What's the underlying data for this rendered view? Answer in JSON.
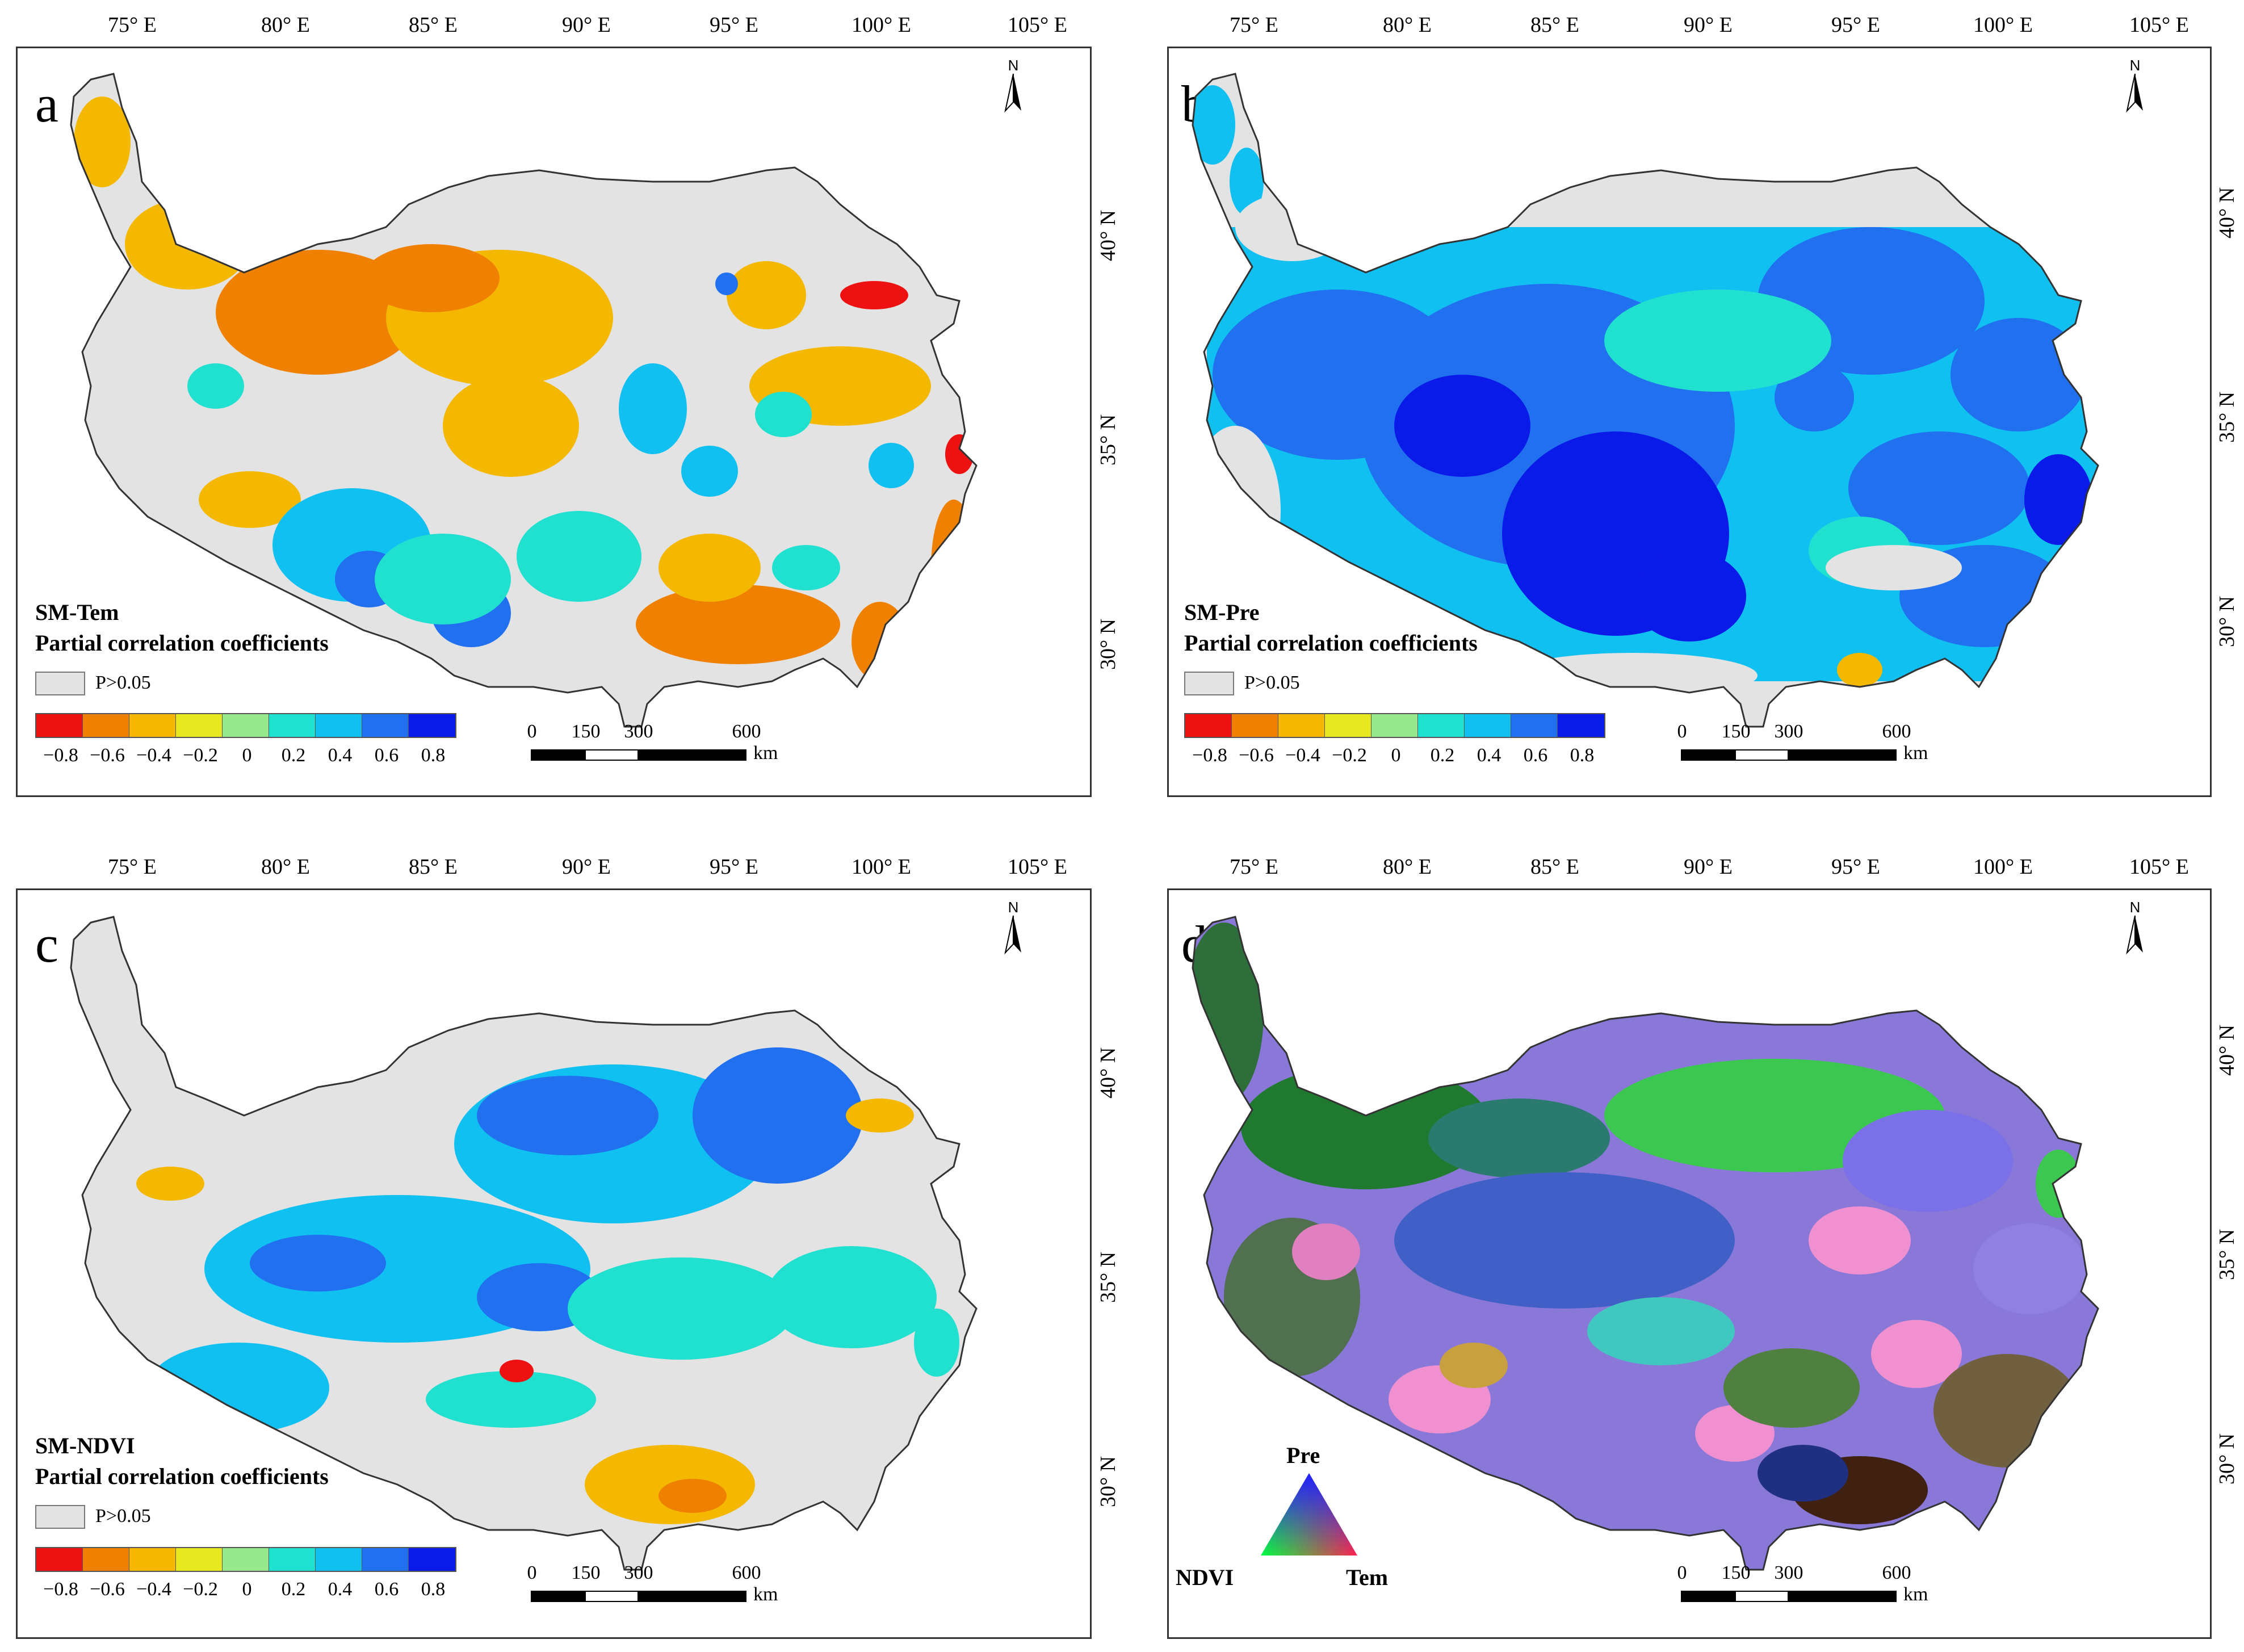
{
  "longitude_labels": [
    "75° E",
    "80° E",
    "85° E",
    "90° E",
    "95° E",
    "100° E",
    "105° E"
  ],
  "latitude_labels": [
    "40° N",
    "35° N",
    "30° N"
  ],
  "north_arrow": {
    "letter": "N",
    "icon": "north-arrow-icon"
  },
  "colorbar": {
    "colors": [
      "#ee1111",
      "#f08000",
      "#f5b800",
      "#e8e820",
      "#98e890",
      "#20e0d0",
      "#10c0f0",
      "#2070f0",
      "#0a1ae8"
    ],
    "tick_labels": [
      "−0.8",
      "−0.6",
      "−0.4",
      "−0.2",
      "0",
      "0.2",
      "0.4",
      "0.6",
      "0.8"
    ]
  },
  "scale_bar": {
    "ticks": [
      "0",
      "150",
      "300",
      "600"
    ],
    "unit": "km"
  },
  "p_label": "P>0.05",
  "panels": [
    {
      "letter": "a",
      "title_line1": "SM-Tem",
      "title_line2": "Partial correlation coefficients"
    },
    {
      "letter": "b",
      "title_line1": "SM-Pre",
      "title_line2": "Partial correlation coefficients"
    },
    {
      "letter": "c",
      "title_line1": "SM-NDVI",
      "title_line2": "Partial correlation coefficients"
    },
    {
      "letter": "d",
      "triangle": {
        "top": "Pre",
        "left": "NDVI",
        "right": "Tem"
      }
    }
  ],
  "colors": {
    "no_significance": "#e3e3e3",
    "outline": "#333333"
  }
}
